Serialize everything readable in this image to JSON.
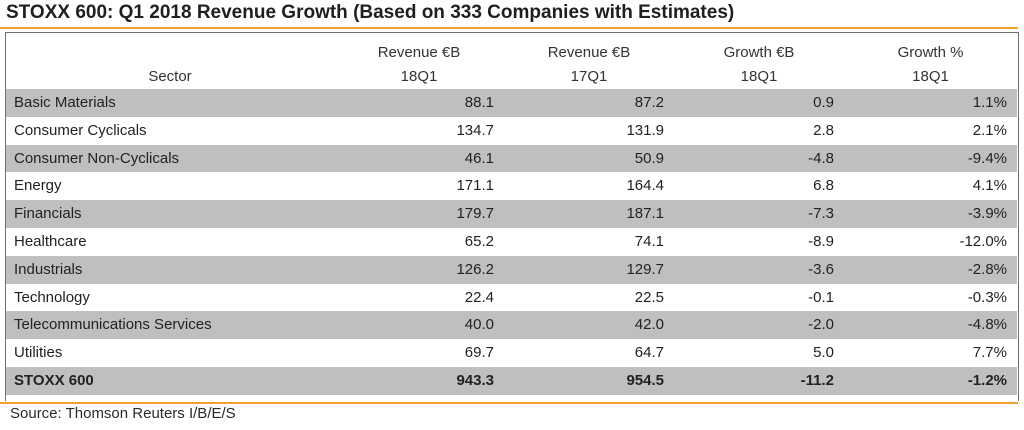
{
  "title": "STOXX 600: Q1 2018 Revenue Growth (Based on 333 Companies with Estimates)",
  "columns": {
    "sector": "Sector",
    "rev18": {
      "line1": "Revenue €B",
      "line2": "18Q1"
    },
    "rev17": {
      "line1": "Revenue €B",
      "line2": "17Q1"
    },
    "growth_eur": {
      "line1": "Growth €B",
      "line2": "18Q1"
    },
    "growth_pct": {
      "line1": "Growth %",
      "line2": "18Q1"
    }
  },
  "rows": [
    {
      "sector": "Basic Materials",
      "rev18": "88.1",
      "rev17": "87.2",
      "growth_eur": "0.9",
      "growth_pct": "1.1%"
    },
    {
      "sector": "Consumer Cyclicals",
      "rev18": "134.7",
      "rev17": "131.9",
      "growth_eur": "2.8",
      "growth_pct": "2.1%"
    },
    {
      "sector": "Consumer Non-Cyclicals",
      "rev18": "46.1",
      "rev17": "50.9",
      "growth_eur": "-4.8",
      "growth_pct": "-9.4%"
    },
    {
      "sector": "Energy",
      "rev18": "171.1",
      "rev17": "164.4",
      "growth_eur": "6.8",
      "growth_pct": "4.1%"
    },
    {
      "sector": "Financials",
      "rev18": "179.7",
      "rev17": "187.1",
      "growth_eur": "-7.3",
      "growth_pct": "-3.9%"
    },
    {
      "sector": "Healthcare",
      "rev18": "65.2",
      "rev17": "74.1",
      "growth_eur": "-8.9",
      "growth_pct": "-12.0%"
    },
    {
      "sector": "Industrials",
      "rev18": "126.2",
      "rev17": "129.7",
      "growth_eur": "-3.6",
      "growth_pct": "-2.8%"
    },
    {
      "sector": "Technology",
      "rev18": "22.4",
      "rev17": "22.5",
      "growth_eur": "-0.1",
      "growth_pct": "-0.3%"
    },
    {
      "sector": "Telecommunications Services",
      "rev18": "40.0",
      "rev17": "42.0",
      "growth_eur": "-2.0",
      "growth_pct": "-4.8%"
    },
    {
      "sector": "Utilities",
      "rev18": "69.7",
      "rev17": "64.7",
      "growth_eur": "5.0",
      "growth_pct": "7.7%"
    }
  ],
  "total": {
    "sector": "STOXX 600",
    "rev18": "943.3",
    "rev17": "954.5",
    "growth_eur": "-11.2",
    "growth_pct": "-1.2%"
  },
  "source": "Source: Thomson Reuters I/B/E/S",
  "colors": {
    "accent_rule": "#f0a030",
    "row_shade": "#bfbfbf",
    "frame": "#6f6f6f"
  }
}
